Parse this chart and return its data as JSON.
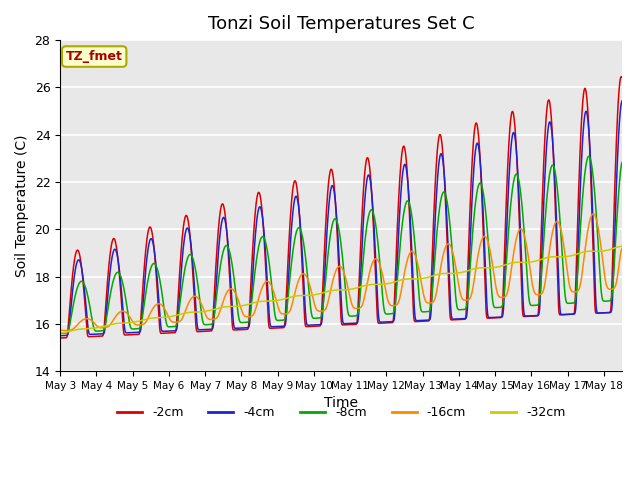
{
  "title": "Tonzi Soil Temperatures Set C",
  "xlabel": "Time",
  "ylabel": "Soil Temperature (C)",
  "ylim": [
    14,
    28
  ],
  "x_tick_labels": [
    "May 3",
    "May 4",
    "May 5",
    "May 6",
    "May 7",
    "May 8",
    "May 9",
    "May 10",
    "May 11",
    "May 12",
    "May 13",
    "May 14",
    "May 15",
    "May 16",
    "May 17",
    "May 18"
  ],
  "annotation_text": "TZ_fmet",
  "annotation_color": "#aa0000",
  "annotation_bg": "#ffffcc",
  "annotation_border": "#aaaa00",
  "series_colors": [
    "#dd0000",
    "#2222cc",
    "#00aa00",
    "#ff8800",
    "#cccc00"
  ],
  "series_labels": [
    "-2cm",
    "-4cm",
    "-8cm",
    "-16cm",
    "-32cm"
  ],
  "plot_bg": "#e8e8e8",
  "grid_color": "white",
  "title_fontsize": 13
}
